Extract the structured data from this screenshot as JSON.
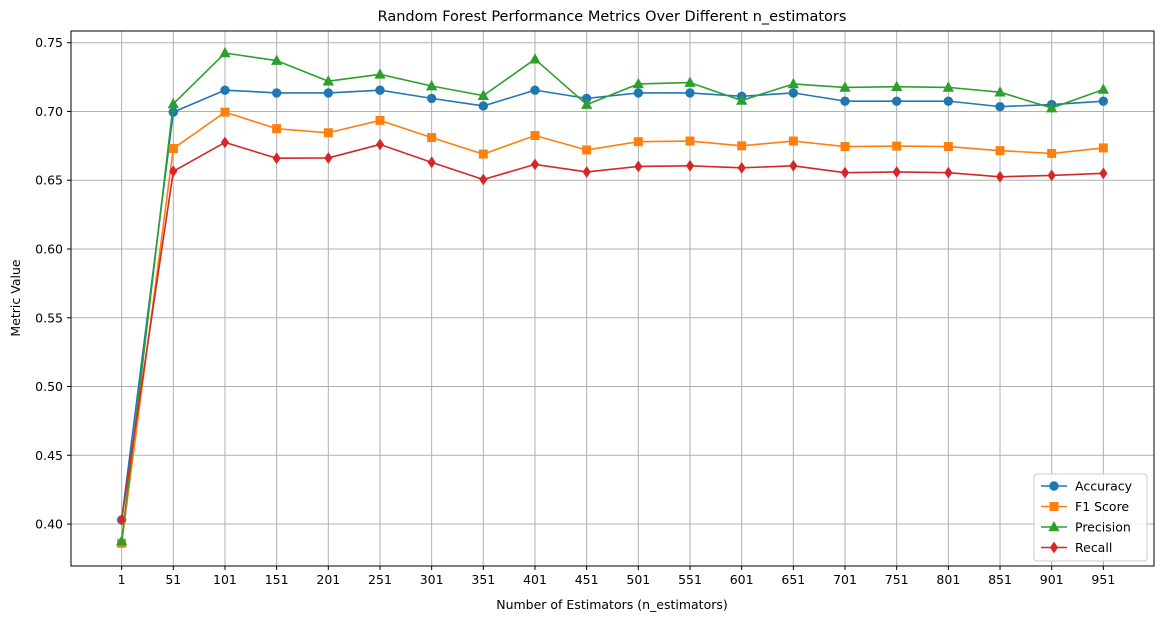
{
  "chart_data": {
    "type": "line",
    "title": "Random Forest Performance Metrics Over Different n_estimators",
    "xlabel": "Number of Estimators (n_estimators)",
    "ylabel": "Metric Value",
    "x": [
      1,
      51,
      101,
      151,
      201,
      251,
      301,
      351,
      401,
      451,
      501,
      551,
      601,
      651,
      701,
      751,
      801,
      851,
      901,
      951
    ],
    "xlim": [
      -48,
      1000
    ],
    "ylim": [
      0.3695,
      0.7585
    ],
    "yticks": [
      0.4,
      0.45,
      0.5,
      0.55,
      0.6,
      0.65,
      0.7,
      0.75
    ],
    "grid": true,
    "legend": "lower-right",
    "series": [
      {
        "name": "Accuracy",
        "color": "#1f77b4",
        "marker": "circle",
        "values": [
          0.403,
          0.6995,
          0.7155,
          0.7135,
          0.7135,
          0.7155,
          0.7095,
          0.704,
          0.7155,
          0.7095,
          0.7135,
          0.7135,
          0.711,
          0.7135,
          0.7075,
          0.7075,
          0.7075,
          0.7035,
          0.705,
          0.7075
        ]
      },
      {
        "name": "F1 Score",
        "color": "#ff7f0e",
        "marker": "square",
        "values": [
          0.386,
          0.673,
          0.6995,
          0.6875,
          0.6845,
          0.6935,
          0.681,
          0.669,
          0.6825,
          0.672,
          0.678,
          0.6785,
          0.675,
          0.6785,
          0.6745,
          0.6748,
          0.6745,
          0.6715,
          0.6695,
          0.6735
        ]
      },
      {
        "name": "Precision",
        "color": "#2ca02c",
        "marker": "triangle",
        "values": [
          0.3875,
          0.7055,
          0.7425,
          0.737,
          0.722,
          0.727,
          0.7185,
          0.7115,
          0.738,
          0.705,
          0.72,
          0.721,
          0.708,
          0.72,
          0.7175,
          0.718,
          0.7175,
          0.714,
          0.7025,
          0.716
        ]
      },
      {
        "name": "Recall",
        "color": "#d62728",
        "marker": "diamond",
        "values": [
          0.403,
          0.6565,
          0.6775,
          0.666,
          0.6662,
          0.676,
          0.663,
          0.6505,
          0.6615,
          0.656,
          0.66,
          0.6605,
          0.659,
          0.6605,
          0.6555,
          0.656,
          0.6555,
          0.6525,
          0.6535,
          0.655
        ]
      }
    ]
  }
}
